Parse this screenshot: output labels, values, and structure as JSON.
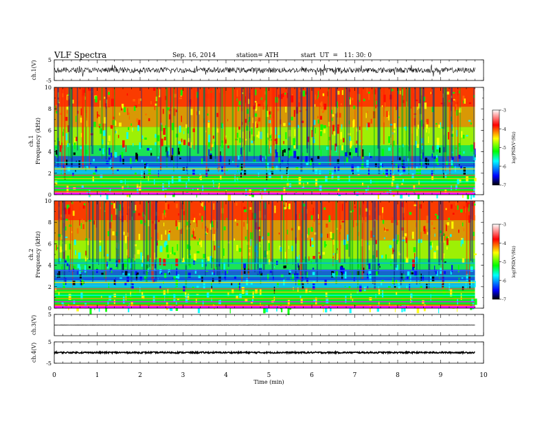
{
  "header": {
    "title": "VLF Spectra",
    "date": "Sep. 16, 2014",
    "station": "station= ATH",
    "start": "start  UT  =   11: 30: 0"
  },
  "colorbar": {
    "label": "log(PSD(V²/Hz)",
    "ticks": [
      "-3",
      "-4",
      "-5",
      "-6",
      "-7"
    ],
    "colors": [
      "#000000",
      "#0000ff",
      "#00ffff",
      "#00ff00",
      "#ffff00",
      "#ff0000",
      "#ffffff"
    ]
  },
  "chart_data": [
    {
      "type": "line",
      "panel": "ch.1 waveform",
      "ylabel": "ch.1(V)",
      "ylim": [
        -5,
        5
      ],
      "yticks": [
        "5",
        "-5"
      ],
      "description": "noisy waveform centered near 0 V with amplitude about ±1.5 V",
      "x_range_min": [
        0,
        9.8
      ]
    },
    {
      "type": "heatmap",
      "panel": "ch.1 spectrogram",
      "ylabel": "Frequency  (kHz)",
      "channel_label": "ch.1",
      "ylim": [
        0,
        10
      ],
      "yticks": [
        "0",
        "2",
        "4",
        "6",
        "8",
        "10"
      ],
      "x_range_min": [
        0,
        9.8
      ],
      "z_range_log": [
        -7,
        -3
      ],
      "bands_khz": [
        0.3,
        0.6,
        0.9,
        1.2,
        1.5,
        1.8,
        2.1,
        2.4,
        2.7,
        3.0
      ]
    },
    {
      "type": "heatmap",
      "panel": "ch.2 spectrogram",
      "ylabel": "Frequency  (kHz)",
      "channel_label": "ch.2",
      "ylim": [
        0,
        10
      ],
      "yticks": [
        "0",
        "2",
        "4",
        "6",
        "8",
        "10"
      ],
      "x_range_min": [
        0,
        9.8
      ],
      "z_range_log": [
        -7,
        -3
      ],
      "bands_khz": [
        0.3,
        0.6,
        0.9,
        1.2,
        1.5,
        1.8,
        2.1,
        2.4,
        2.7,
        3.0,
        3.5,
        4.2
      ]
    },
    {
      "type": "line",
      "panel": "ch.3 waveform",
      "ylabel": "ch.3(V)",
      "ylim": [
        -5,
        5
      ],
      "yticks": [
        "5"
      ],
      "description": "flat line near 0 V",
      "x_range_min": [
        0,
        9.8
      ]
    },
    {
      "type": "line",
      "panel": "ch.4 waveform",
      "ylabel": "ch.4(V)",
      "ylim": [
        -5,
        5
      ],
      "yticks": [
        "5",
        "-5"
      ],
      "description": "thick dense trace near 0 V",
      "x_range_min": [
        0,
        9.8
      ]
    }
  ],
  "xaxis": {
    "label": "Time  (min)",
    "ticks": [
      "0",
      "1",
      "2",
      "3",
      "4",
      "5",
      "6",
      "7",
      "8",
      "9",
      "10"
    ],
    "xlim": [
      0,
      10
    ]
  }
}
